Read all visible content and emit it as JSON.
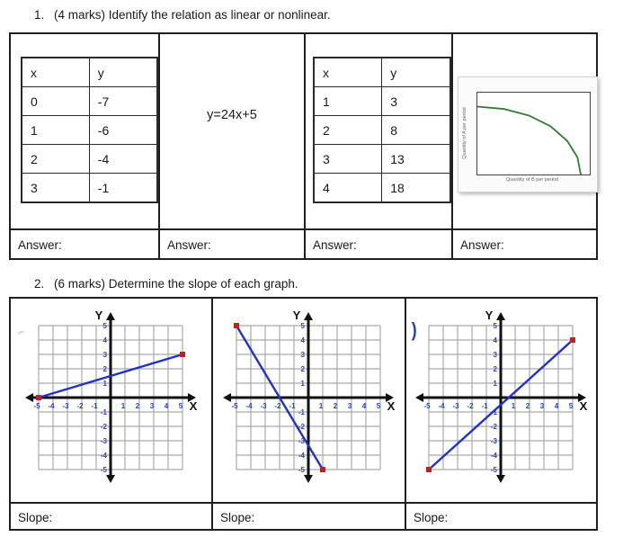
{
  "question1": {
    "number": "1.",
    "prompt": "(4 marks) Identify the relation as linear or nonlinear.",
    "table_a": {
      "headers": [
        "x",
        "y"
      ],
      "rows": [
        [
          "0",
          "-7"
        ],
        [
          "1",
          "-6"
        ],
        [
          "2",
          "-4"
        ],
        [
          "3",
          "-1"
        ]
      ]
    },
    "equation": "y=24x+5",
    "table_b": {
      "headers": [
        "x",
        "y"
      ],
      "rows": [
        [
          "1",
          "3"
        ],
        [
          "2",
          "8"
        ],
        [
          "3",
          "13"
        ],
        [
          "4",
          "18"
        ]
      ]
    },
    "curve_figure": {
      "xlabel": "Quantity of B per period",
      "ylabel": "Quantity of A per period"
    },
    "answer_labels": [
      "Answer:",
      "Answer:",
      "Answer:",
      "Answer:"
    ]
  },
  "question2": {
    "number": "2.",
    "prompt": "(6 marks) Determine the slope of each graph.",
    "slope_labels": [
      "Slope:",
      "Slope:",
      "Slope:"
    ],
    "stray_mark": ")"
  },
  "colors": {
    "grid": "#a9a9a9",
    "axis": "#111111",
    "tick": "#2743c9",
    "table_border": "#1f1f1f"
  },
  "chart_data": [
    {
      "type": "line",
      "title": "slope-graph-1",
      "xlabel": "X",
      "ylabel": "Y",
      "xlim": [
        -5,
        5
      ],
      "ylim": [
        -5,
        5
      ],
      "grid": true,
      "tick_labels": [
        -5,
        -4,
        -3,
        -2,
        -1,
        1,
        2,
        3,
        4,
        5
      ],
      "endpoints": [
        [
          -5,
          0
        ],
        [
          5,
          3
        ]
      ],
      "line_color": "#2130cf",
      "endpoint_color": "#bb2222"
    },
    {
      "type": "line",
      "title": "slope-graph-2",
      "xlabel": "X",
      "ylabel": "Y",
      "xlim": [
        -5,
        5
      ],
      "ylim": [
        -5,
        5
      ],
      "grid": true,
      "tick_labels": [
        -5,
        -4,
        -3,
        -2,
        -1,
        1,
        2,
        3,
        4,
        5
      ],
      "endpoints": [
        [
          -5,
          5
        ],
        [
          1,
          -5
        ]
      ],
      "line_color": "#2130cf",
      "endpoint_color": "#bb2222"
    },
    {
      "type": "line",
      "title": "slope-graph-3",
      "xlabel": "X",
      "ylabel": "Y",
      "xlim": [
        -5,
        5
      ],
      "ylim": [
        -5,
        5
      ],
      "grid": true,
      "tick_labels": [
        -5,
        -4,
        -3,
        -2,
        -1,
        1,
        2,
        3,
        4,
        5
      ],
      "endpoints": [
        [
          -5,
          -5
        ],
        [
          5,
          4
        ]
      ],
      "line_color": "#2130cf",
      "endpoint_color": "#bb2222"
    },
    {
      "type": "line",
      "title": "quantity-curve",
      "xlabel": "Quantity of B per period",
      "ylabel": "Quantity of A per period",
      "description": "concave decreasing curve from upper-left to lower-right",
      "line_color": "#2e7d32",
      "points_norm": [
        [
          0,
          0.17
        ],
        [
          0.24,
          0.2
        ],
        [
          0.46,
          0.28
        ],
        [
          0.65,
          0.41
        ],
        [
          0.8,
          0.59
        ],
        [
          0.89,
          0.79
        ],
        [
          0.92,
          1.0
        ]
      ]
    }
  ]
}
